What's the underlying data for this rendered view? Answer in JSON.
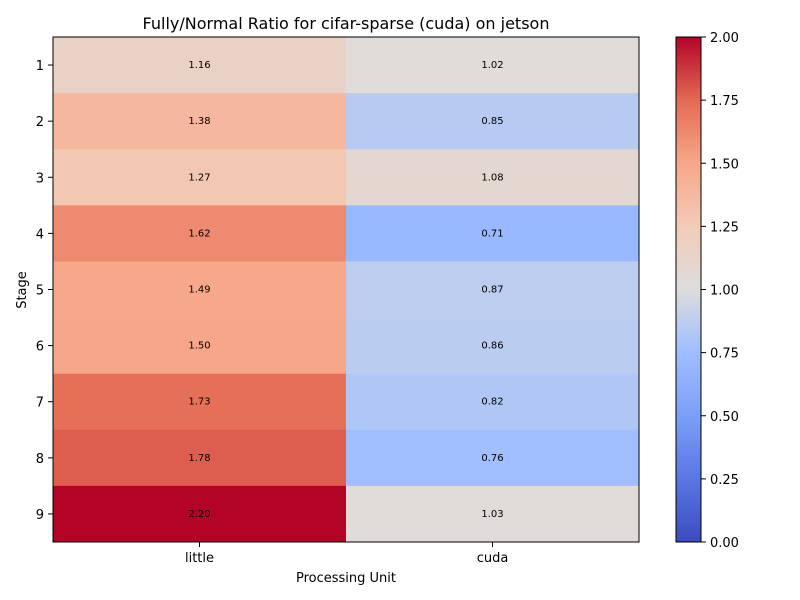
{
  "chart_data": {
    "type": "heatmap",
    "title": "Fully/Normal Ratio for cifar-sparse (cuda) on jetson",
    "xlabel": "Processing Unit",
    "ylabel": "Stage",
    "x_categories": [
      "little",
      "cuda"
    ],
    "y_categories": [
      "1",
      "2",
      "3",
      "4",
      "5",
      "6",
      "7",
      "8",
      "9"
    ],
    "values": [
      [
        1.16,
        1.02
      ],
      [
        1.38,
        0.85
      ],
      [
        1.27,
        1.08
      ],
      [
        1.62,
        0.71
      ],
      [
        1.49,
        0.87
      ],
      [
        1.5,
        0.86
      ],
      [
        1.73,
        0.82
      ],
      [
        1.78,
        0.76
      ],
      [
        2.2,
        1.03
      ]
    ],
    "cell_labels": [
      [
        "1.16",
        "1.02"
      ],
      [
        "1.38",
        "0.85"
      ],
      [
        "1.27",
        "1.08"
      ],
      [
        "1.62",
        "0.71"
      ],
      [
        "1.49",
        "0.87"
      ],
      [
        "1.50",
        "0.86"
      ],
      [
        "1.73",
        "0.82"
      ],
      [
        "1.78",
        "0.76"
      ],
      [
        "2.20",
        "1.03"
      ]
    ],
    "colormap": "coolwarm",
    "colorbar": {
      "range": [
        0.0,
        2.0
      ],
      "ticks": [
        0.0,
        0.25,
        0.5,
        0.75,
        1.0,
        1.25,
        1.5,
        1.75,
        2.0
      ],
      "tick_labels": [
        "0.00",
        "0.25",
        "0.50",
        "0.75",
        "1.00",
        "1.25",
        "1.50",
        "1.75",
        "2.00"
      ]
    },
    "grid": false
  }
}
